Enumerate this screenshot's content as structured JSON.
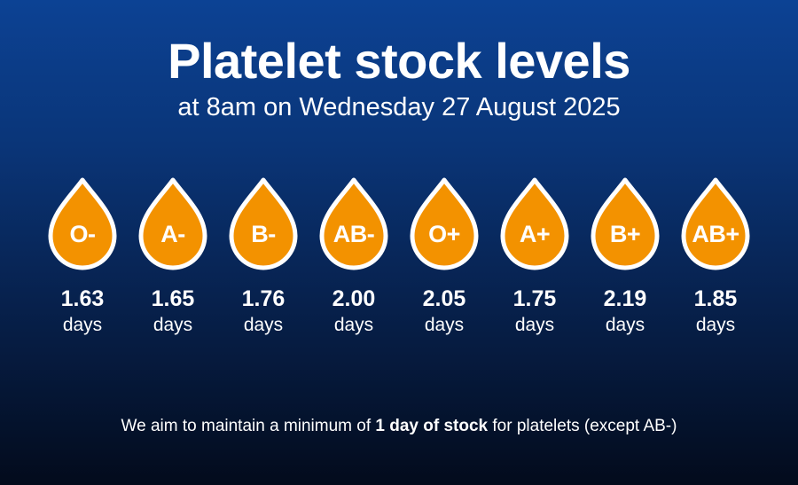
{
  "header": {
    "title": "Platelet stock levels",
    "subtitle": "at 8am on Wednesday 27 August 2025"
  },
  "colors": {
    "drop_fill": "#f39200",
    "drop_outline": "#ffffff",
    "background_top": "#0c4294",
    "background_bottom": "#030b1c"
  },
  "stock": [
    {
      "group": "O-",
      "value": "1.63",
      "unit": "days"
    },
    {
      "group": "A-",
      "value": "1.65",
      "unit": "days"
    },
    {
      "group": "B-",
      "value": "1.76",
      "unit": "days"
    },
    {
      "group": "AB-",
      "value": "2.00",
      "unit": "days"
    },
    {
      "group": "O+",
      "value": "2.05",
      "unit": "days"
    },
    {
      "group": "A+",
      "value": "1.75",
      "unit": "days"
    },
    {
      "group": "B+",
      "value": "2.19",
      "unit": "days"
    },
    {
      "group": "AB+",
      "value": "1.85",
      "unit": "days"
    }
  ],
  "footnote": {
    "before": "We aim to maintain a minimum of ",
    "emphasis": "1 day of stock",
    "after": " for platelets (except AB-)"
  }
}
